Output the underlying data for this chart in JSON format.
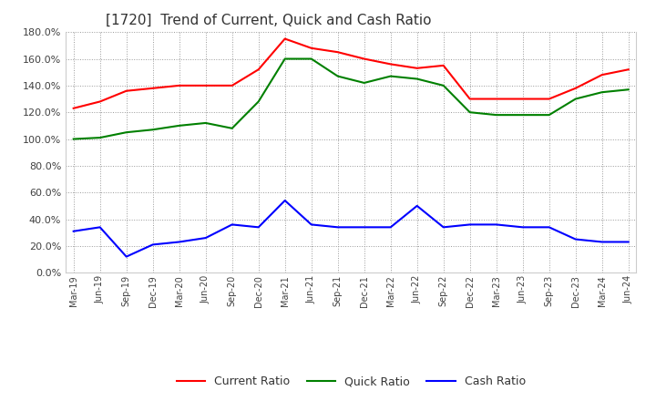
{
  "title": "[1720]  Trend of Current, Quick and Cash Ratio",
  "x_labels": [
    "Mar-19",
    "Jun-19",
    "Sep-19",
    "Dec-19",
    "Mar-20",
    "Jun-20",
    "Sep-20",
    "Dec-20",
    "Mar-21",
    "Jun-21",
    "Sep-21",
    "Dec-21",
    "Mar-22",
    "Jun-22",
    "Sep-22",
    "Dec-22",
    "Mar-23",
    "Jun-23",
    "Sep-23",
    "Dec-23",
    "Mar-24",
    "Jun-24"
  ],
  "current_ratio": [
    123,
    128,
    136,
    138,
    140,
    140,
    140,
    152,
    175,
    168,
    165,
    160,
    156,
    153,
    155,
    130,
    130,
    130,
    130,
    138,
    148,
    152
  ],
  "quick_ratio": [
    100,
    101,
    105,
    107,
    110,
    112,
    108,
    128,
    160,
    160,
    147,
    142,
    147,
    145,
    140,
    120,
    118,
    118,
    118,
    130,
    135,
    137
  ],
  "cash_ratio": [
    31,
    34,
    12,
    21,
    23,
    26,
    36,
    34,
    54,
    36,
    34,
    34,
    34,
    50,
    34,
    36,
    36,
    34,
    34,
    25,
    23,
    23
  ],
  "current_color": "#ff0000",
  "quick_color": "#008000",
  "cash_color": "#0000ff",
  "ylim": [
    0,
    180
  ],
  "yticks": [
    0,
    20,
    40,
    60,
    80,
    100,
    120,
    140,
    160,
    180
  ],
  "background_color": "#ffffff",
  "grid_color": "#aaaaaa"
}
